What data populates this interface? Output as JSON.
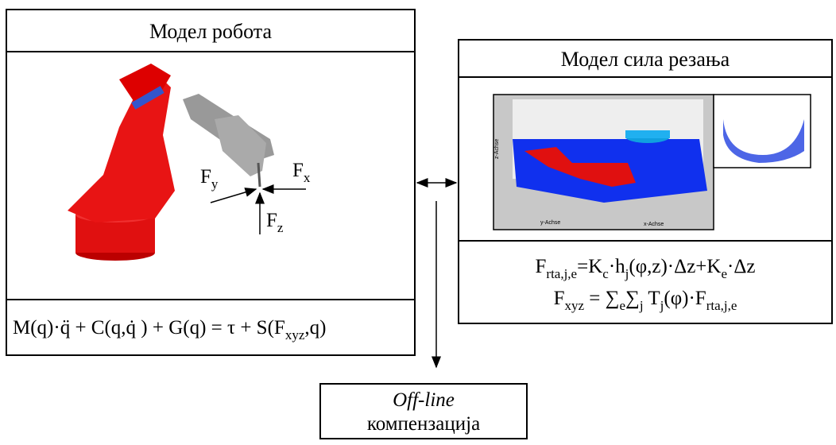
{
  "robot_model": {
    "title": "Модел робота",
    "force_labels": [
      [
        "F",
        "y"
      ],
      [
        "F",
        "x"
      ],
      [
        "F",
        "z"
      ]
    ],
    "equation": [
      "M(q)·q̈   + C(q,q̇ ) + G(q) = τ + S(F",
      "xyz",
      ",q)"
    ]
  },
  "cutting_force_model": {
    "title": "Модел сила резања",
    "plot_axes": [
      "z-Achse",
      "y-Achse",
      "x-Achse"
    ],
    "equations": [
      [
        "F",
        "rta,j,e",
        "=K",
        "c",
        "·h",
        "j",
        "(φ,z)·Δz+K",
        "e",
        "·Δz"
      ],
      [
        "F",
        "xyz",
        " = ∑",
        "e",
        "∑",
        "j",
        " T",
        "j",
        "(φ)·F",
        "rta,j,e"
      ]
    ]
  },
  "compensation": {
    "line1": "Off-line",
    "line2": "компензација"
  }
}
